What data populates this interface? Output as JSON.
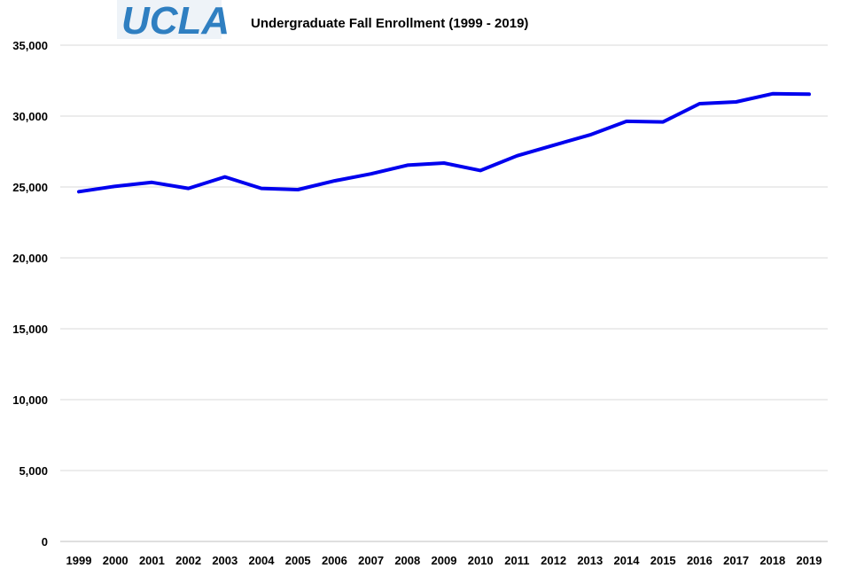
{
  "logo": {
    "text": "UCLA",
    "color": "#2f7fc1",
    "background": "#eef3f8"
  },
  "chart_data": {
    "type": "line",
    "title": "Undergraduate Fall Enrollment (1999 - 2019)",
    "xlabel": "",
    "ylabel": "",
    "categories": [
      "1999",
      "2000",
      "2001",
      "2002",
      "2003",
      "2004",
      "2005",
      "2006",
      "2007",
      "2008",
      "2009",
      "2010",
      "2011",
      "2012",
      "2013",
      "2014",
      "2015",
      "2016",
      "2017",
      "2018",
      "2019"
    ],
    "series": [
      {
        "values": [
          24668,
          25047,
          25328,
          24899,
          25715,
          24899,
          24811,
          25432,
          25928,
          26536,
          26687,
          26162,
          27199,
          27941,
          28674,
          29633,
          29585,
          30873,
          31002,
          31577,
          31543
        ],
        "color": "#0000ee"
      }
    ],
    "yticks": [
      "0",
      "5,000",
      "10,000",
      "15,000",
      "20,000",
      "25,000",
      "30,000",
      "35,000"
    ],
    "ylim": [
      0,
      35000
    ],
    "grid": true,
    "legend": "none"
  }
}
